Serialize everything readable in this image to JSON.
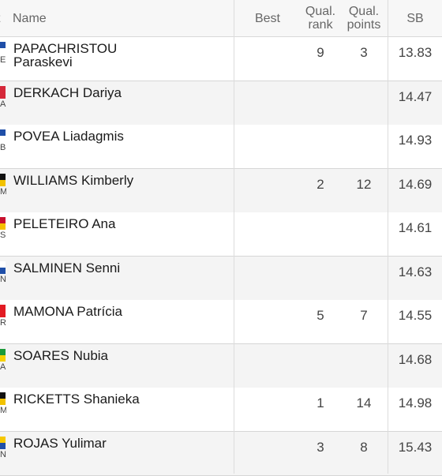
{
  "header": {
    "rank_label": "t",
    "name_label": "Name",
    "best_label": "Best",
    "qual_rank_line1": "Qual.",
    "qual_rank_line2": "rank",
    "qual_points_line1": "Qual.",
    "qual_points_line2": "points",
    "sb_label": "SB"
  },
  "athletes": [
    {
      "surname": "PAPACHRISTOU",
      "first": "Paraskevi",
      "country": "E",
      "flag": [
        "#1f4fa8",
        "#ffffff"
      ],
      "qual_rank": "9",
      "qual_points": "3",
      "sb": "13.83"
    },
    {
      "surname": "DERKACH",
      "first": "Dariya",
      "country": "A",
      "flag": [
        "#d5283a",
        "#d5283a"
      ],
      "qual_rank": "",
      "qual_points": "",
      "sb": "14.47"
    },
    {
      "surname": "POVEA",
      "first": "Liadagmis",
      "country": "B",
      "flag": [
        "#1f4fa8",
        "#ffffff"
      ],
      "qual_rank": "",
      "qual_points": "",
      "sb": "14.93"
    },
    {
      "surname": "WILLIAMS",
      "first": "Kimberly",
      "country": "M",
      "flag": [
        "#111111",
        "#f2c200"
      ],
      "qual_rank": "2",
      "qual_points": "12",
      "sb": "14.69"
    },
    {
      "surname": "PELETEIRO",
      "first": "Ana",
      "country": "S",
      "flag": [
        "#c8102e",
        "#f6c000"
      ],
      "qual_rank": "",
      "qual_points": "",
      "sb": "14.61"
    },
    {
      "surname": "SALMINEN",
      "first": "Senni",
      "country": "N",
      "flag": [
        "#ffffff",
        "#1f4fa8"
      ],
      "qual_rank": "",
      "qual_points": "",
      "sb": "14.63"
    },
    {
      "surname": "MAMONA",
      "first": "Patrícia",
      "country": "R",
      "flag": [
        "#e21b23",
        "#e21b23"
      ],
      "qual_rank": "5",
      "qual_points": "7",
      "sb": "14.55"
    },
    {
      "surname": "SOARES",
      "first": "Nubia",
      "country": "A",
      "flag": [
        "#1b9a3a",
        "#f6d100"
      ],
      "qual_rank": "",
      "qual_points": "",
      "sb": "14.68"
    },
    {
      "surname": "RICKETTS",
      "first": "Shanieka",
      "country": "M",
      "flag": [
        "#111111",
        "#f2c200"
      ],
      "qual_rank": "1",
      "qual_points": "14",
      "sb": "14.98"
    },
    {
      "surname": "ROJAS",
      "first": "Yulimar",
      "country": "N",
      "flag": [
        "#f6c800",
        "#1f4fa8"
      ],
      "qual_rank": "3",
      "qual_points": "8",
      "sb": "15.43"
    }
  ]
}
